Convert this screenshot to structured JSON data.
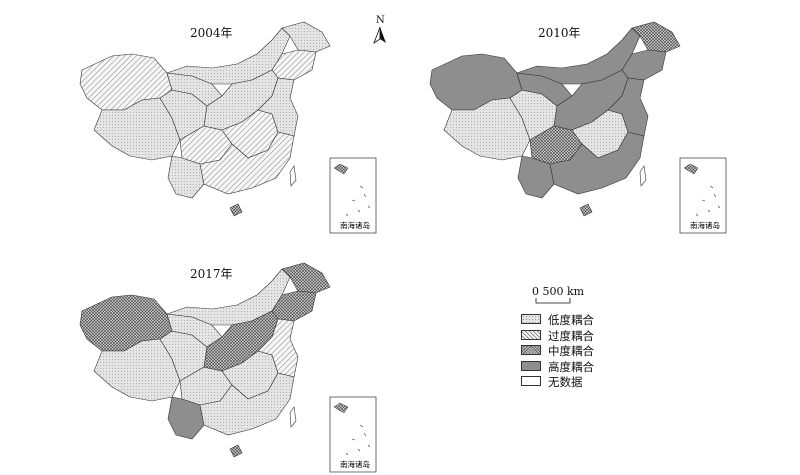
{
  "maps": [
    {
      "title": "2004年",
      "inset_label": "南海诸岛"
    },
    {
      "title": "2010年",
      "inset_label": "南海诸岛"
    },
    {
      "title": "2017年",
      "inset_label": "南海诸岛"
    }
  ],
  "north_arrow": {
    "label": "N"
  },
  "scale_bar": {
    "label": "0 500 km"
  },
  "legend": [
    {
      "label": "低度耦合",
      "pattern": "low"
    },
    {
      "label": "过度耦合",
      "pattern": "transition"
    },
    {
      "label": "中度耦合",
      "pattern": "medium"
    },
    {
      "label": "高度耦合",
      "pattern": "high"
    },
    {
      "label": "无数据",
      "pattern": "none"
    }
  ]
}
